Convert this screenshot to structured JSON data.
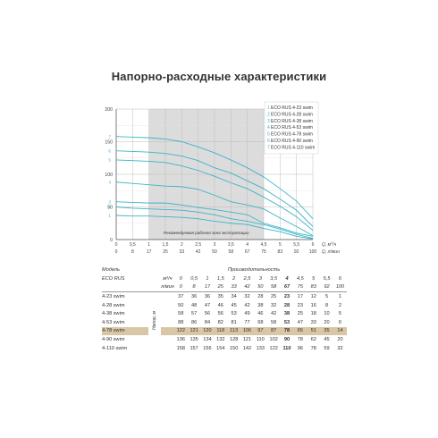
{
  "title": "Напорно-расходные характеристики",
  "chart_data": {
    "type": "line",
    "ylim": [
      0,
      200
    ],
    "xlim": [
      0,
      6
    ],
    "y_ticks": [
      "0",
      "50",
      "100",
      "150",
      "200"
    ],
    "x_ticks_m3h": [
      "0",
      "0,5",
      "1",
      "1,5",
      "2",
      "2,5",
      "3",
      "3,5",
      "4",
      "4,5",
      "5",
      "5,5",
      "6"
    ],
    "x_ticks_lmin": [
      "0",
      "8",
      "17",
      "25",
      "33",
      "42",
      "50",
      "58",
      "67",
      "75",
      "83",
      "92",
      "100"
    ],
    "x_unit_m3h": "Q, м",
    "x_unit_m3h_sup": "3",
    "x_unit_m3h_tail": "/ч",
    "x_unit_lmin": "Q, л/мин",
    "zone_label": "Рекомендуемая рабочая зона эксплуатации",
    "grid": true,
    "legend_position": "top-right",
    "curve_color": "#3db3c9",
    "zone_color": "#dcdcdc",
    "x": [
      0,
      0.5,
      1,
      1.5,
      2,
      2.5,
      3,
      3.5,
      4,
      4.5,
      5,
      5.5,
      6
    ],
    "series": [
      {
        "id": "1",
        "name": "ECO RUS 4-23 swim",
        "values": [
          37,
          36,
          36,
          35,
          34,
          32,
          28,
          25,
          23,
          17,
          12,
          5,
          1
        ]
      },
      {
        "id": "2",
        "name": "ECO RUS 4-28 swim",
        "values": [
          50,
          48,
          47,
          46,
          45,
          42,
          38,
          32,
          28,
          23,
          16,
          8,
          2
        ]
      },
      {
        "id": "3",
        "name": "ECO RUS 4-38 swim",
        "values": [
          58,
          57,
          56,
          56,
          53,
          49,
          46,
          42,
          38,
          25,
          18,
          10,
          5
        ]
      },
      {
        "id": "4",
        "name": "ECO RUS 4-53 swim",
        "values": [
          88,
          86,
          84,
          82,
          81,
          77,
          68,
          58,
          53,
          47,
          33,
          20,
          6
        ]
      },
      {
        "id": "5",
        "name": "ECO RUS 4-78 swim",
        "values": [
          122,
          121,
          120,
          118,
          113,
          106,
          97,
          87,
          78,
          65,
          51,
          35,
          14
        ]
      },
      {
        "id": "6",
        "name": "ECO RUS 4-90 swim",
        "values": [
          136,
          135,
          134,
          132,
          128,
          121,
          110,
          102,
          90,
          78,
          62,
          45,
          20
        ]
      },
      {
        "id": "7",
        "name": "ECO RUS 4-110 swim",
        "values": [
          158,
          157,
          156,
          154,
          150,
          142,
          133,
          122,
          110,
          96,
          78,
          59,
          32
        ]
      }
    ]
  },
  "table": {
    "header_group": "Производительность",
    "model_label_1": "Модель",
    "model_label_2": "ECO RUS",
    "unit_m3h": "м³/ч",
    "unit_lmin": "л/мин",
    "head_label": "Напор, м",
    "bold_col_index": 8,
    "highlight_row_index": 4,
    "rows": [
      {
        "model": "4-23 swim",
        "values": [
          "37",
          "36",
          "36",
          "35",
          "34",
          "32",
          "28",
          "25",
          "23",
          "17",
          "12",
          "5",
          "1"
        ]
      },
      {
        "model": "4-28 swim",
        "values": [
          "50",
          "48",
          "47",
          "46",
          "45",
          "42",
          "38",
          "32",
          "28",
          "23",
          "16",
          "8",
          "2"
        ]
      },
      {
        "model": "4-38 swim",
        "values": [
          "58",
          "57",
          "56",
          "56",
          "53",
          "49",
          "46",
          "42",
          "38",
          "25",
          "18",
          "10",
          "5"
        ]
      },
      {
        "model": "4-53 swim",
        "values": [
          "88",
          "86",
          "84",
          "82",
          "81",
          "77",
          "68",
          "58",
          "53",
          "47",
          "33",
          "20",
          "6"
        ]
      },
      {
        "model": "4-78 swim",
        "values": [
          "122",
          "121",
          "120",
          "118",
          "113",
          "106",
          "97",
          "87",
          "78",
          "65",
          "51",
          "35",
          "14"
        ]
      },
      {
        "model": "4-90 swim",
        "values": [
          "136",
          "135",
          "134",
          "132",
          "128",
          "121",
          "110",
          "102",
          "90",
          "78",
          "62",
          "45",
          "20"
        ]
      },
      {
        "model": "4-110 swim",
        "values": [
          "158",
          "157",
          "156",
          "154",
          "150",
          "142",
          "133",
          "122",
          "110",
          "96",
          "78",
          "59",
          "32"
        ]
      }
    ]
  }
}
